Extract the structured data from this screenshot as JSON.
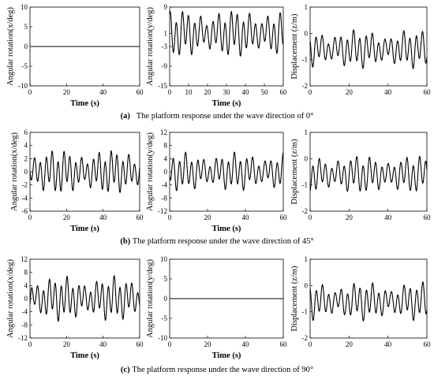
{
  "captions": [
    {
      "label": "(a)",
      "text": "The platform response under the wave direction of 0°"
    },
    {
      "label": "(b)",
      "text": "The platform response under the wave direction of 45°"
    },
    {
      "label": "(c)",
      "text": "The platform response under the wave direction of 90°"
    }
  ],
  "chart_data": [
    {
      "type": "line",
      "row": "a",
      "xlabel": "Time (s)",
      "ylabel": "Angular rotation(x/deg)",
      "xlim": [
        0,
        60
      ],
      "ylim": [
        -10,
        10
      ],
      "xticks": [
        0,
        20,
        40,
        60
      ],
      "yticks": [
        -10,
        -5,
        0,
        5,
        10
      ],
      "series": [
        {
          "style": "flat",
          "mean": 0,
          "amplitude": 0
        }
      ]
    },
    {
      "type": "line",
      "row": "a",
      "xlabel": "Time (s)",
      "ylabel": "Angular rotation(y/deg)",
      "xlim": [
        0,
        60
      ],
      "ylim": [
        -15,
        9
      ],
      "xticks": [
        0,
        10,
        20,
        30,
        40,
        50,
        60
      ],
      "yticks": [
        -15,
        -9,
        -3,
        1,
        9
      ],
      "series": [
        {
          "style": "oscillation",
          "mean": 1,
          "amplitude": 7.5,
          "min": -13,
          "max": 8.5
        }
      ]
    },
    {
      "type": "line",
      "row": "a",
      "xlabel": "",
      "ylabel": "Displacement (z/m)",
      "xlim": [
        0,
        60
      ],
      "ylim": [
        -2,
        1
      ],
      "xticks": [
        0,
        20,
        40,
        60
      ],
      "yticks": [
        -2,
        -1,
        0,
        1
      ],
      "series": [
        {
          "style": "oscillation",
          "mean": -0.6,
          "amplitude": 0.75,
          "min": -1.6,
          "max": 0.2
        }
      ]
    },
    {
      "type": "line",
      "row": "b",
      "xlabel": "Time (s)",
      "ylabel": "Angular rotation(x/deg)",
      "xlim": [
        0,
        60
      ],
      "ylim": [
        -6,
        6
      ],
      "xticks": [
        0,
        20,
        40,
        60
      ],
      "yticks": [
        -6,
        -4,
        -2,
        0,
        2,
        4,
        6
      ],
      "series": [
        {
          "style": "oscillation",
          "mean": 0,
          "amplitude": 3.5,
          "min": -5.5,
          "max": 4.3
        }
      ]
    },
    {
      "type": "line",
      "row": "b",
      "xlabel": "Time (s)",
      "ylabel": "Angular rotation(y/deg)",
      "xlim": [
        0,
        60
      ],
      "ylim": [
        -12,
        12
      ],
      "xticks": [
        0,
        20,
        40,
        60
      ],
      "yticks": [
        -12,
        -8,
        -4,
        0,
        4,
        8,
        12
      ],
      "series": [
        {
          "style": "oscillation",
          "mean": 0,
          "amplitude": 6,
          "min": -11,
          "max": 8
        }
      ]
    },
    {
      "type": "line",
      "row": "b",
      "xlabel": "",
      "ylabel": "Displacement (z/m)",
      "xlim": [
        0,
        60
      ],
      "ylim": [
        -2,
        1
      ],
      "xticks": [
        0,
        20,
        40,
        60
      ],
      "yticks": [
        -2,
        -1,
        0,
        1
      ],
      "series": [
        {
          "style": "oscillation",
          "mean": -0.6,
          "amplitude": 0.75,
          "min": -1.6,
          "max": 0.2
        }
      ]
    },
    {
      "type": "line",
      "row": "c",
      "xlabel": "Time (s)",
      "ylabel": "Angular rotation(x/deg)",
      "xlim": [
        0,
        60
      ],
      "ylim": [
        -12,
        12
      ],
      "xticks": [
        0,
        20,
        40,
        60
      ],
      "yticks": [
        -12,
        -8,
        -4,
        0,
        4,
        8,
        12
      ],
      "series": [
        {
          "style": "oscillation",
          "mean": 0,
          "amplitude": 7,
          "min": -10.5,
          "max": 9.5
        }
      ]
    },
    {
      "type": "line",
      "row": "c",
      "xlabel": "Time (s)",
      "ylabel": "Angular rotation(y/deg)",
      "xlim": [
        0,
        60
      ],
      "ylim": [
        -10,
        10
      ],
      "xticks": [
        0,
        20,
        40,
        60
      ],
      "yticks": [
        -10,
        -5,
        0,
        5,
        10
      ],
      "series": [
        {
          "style": "flat",
          "mean": 0,
          "amplitude": 0
        }
      ]
    },
    {
      "type": "line",
      "row": "c",
      "xlabel": "",
      "ylabel": "Displacement (z/m)",
      "xlim": [
        0,
        60
      ],
      "ylim": [
        -2,
        1
      ],
      "xticks": [
        0,
        20,
        40,
        60
      ],
      "yticks": [
        -2,
        -1,
        0,
        1
      ],
      "series": [
        {
          "style": "oscillation",
          "mean": -0.6,
          "amplitude": 0.75,
          "min": -1.6,
          "max": 0.2
        }
      ]
    }
  ]
}
